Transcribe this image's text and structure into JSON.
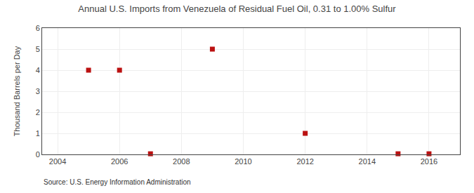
{
  "chart_data": {
    "type": "scatter",
    "title": "Annual U.S. Imports from Venezuela of Residual Fuel Oil, 0.31 to 1.00% Sulfur",
    "ylabel": "Thousand Barrels per Day",
    "annotations": [
      "Source: U.S. Energy Information Administration"
    ],
    "x": [
      2005,
      2006,
      2007,
      2009,
      2012,
      2015,
      2016
    ],
    "values": [
      4,
      4,
      0.03,
      5,
      1,
      0.03,
      0.03
    ],
    "color": "#bb1111",
    "marker": "square",
    "xlim": [
      2003.5,
      2017.0
    ],
    "xticks": [
      2004,
      2006,
      2008,
      2010,
      2012,
      2014,
      2016
    ],
    "ylim": [
      0,
      6
    ],
    "yticks": [
      0,
      1,
      2,
      3,
      4,
      5,
      6
    ],
    "grid": true
  }
}
